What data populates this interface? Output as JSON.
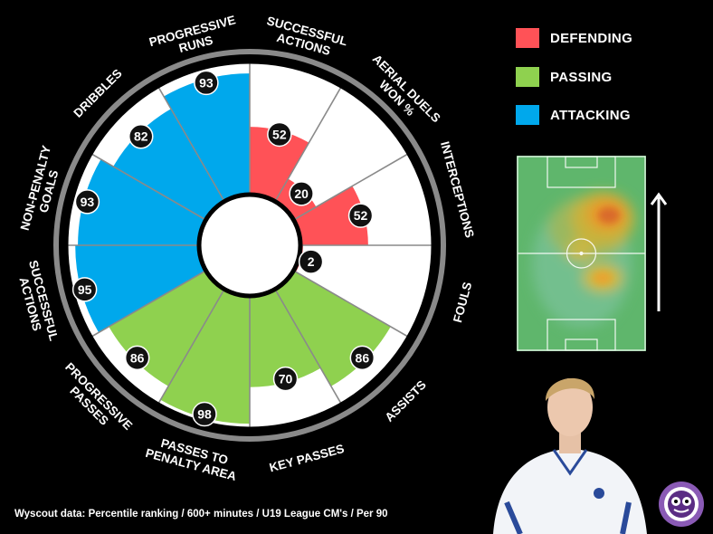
{
  "chart_data": {
    "type": "radar",
    "scale": [
      0,
      100
    ],
    "series": [
      {
        "name": "DEFENDING",
        "color": "#ff5257"
      },
      {
        "name": "PASSING",
        "color": "#8fd14f"
      },
      {
        "name": "ATTACKING",
        "color": "#00a8ec"
      }
    ],
    "metrics": [
      {
        "label": "SUCCESSFUL\nACTIONS",
        "group": "DEFENDING",
        "value": 52
      },
      {
        "label": "AERIAL DUELS\nWON %",
        "group": "DEFENDING",
        "value": 20
      },
      {
        "label": "INTERCEPTIONS",
        "group": "DEFENDING",
        "value": 52
      },
      {
        "label": "FOULS",
        "group": "DEFENDING",
        "value": 2
      },
      {
        "label": "ASSISTS",
        "group": "PASSING",
        "value": 86
      },
      {
        "label": "KEY PASSES",
        "group": "PASSING",
        "value": 70
      },
      {
        "label": "PASSES TO\nPENALTY AREA",
        "group": "PASSING",
        "value": 98
      },
      {
        "label": "PROGRESSIVE\nPASSES",
        "group": "PASSING",
        "value": 86
      },
      {
        "label": "SUCCESSFUL\nACTIONS",
        "group": "ATTACKING",
        "value": 95
      },
      {
        "label": "NON-PENALTY\nGOALS",
        "group": "ATTACKING",
        "value": 93
      },
      {
        "label": "DRIBBLES",
        "group": "ATTACKING",
        "value": 82
      },
      {
        "label": "PROGRESSIVE\nRUNS",
        "group": "ATTACKING",
        "value": 93
      }
    ]
  },
  "legend": [
    {
      "label": "DEFENDING",
      "color": "#ff5257"
    },
    {
      "label": "PASSING",
      "color": "#8fd14f"
    },
    {
      "label": "ATTACKING",
      "color": "#00a8ec"
    }
  ],
  "footer": "Wyscout data: Percentile ranking / 600+ minutes / U19 League CM's / Per 90"
}
